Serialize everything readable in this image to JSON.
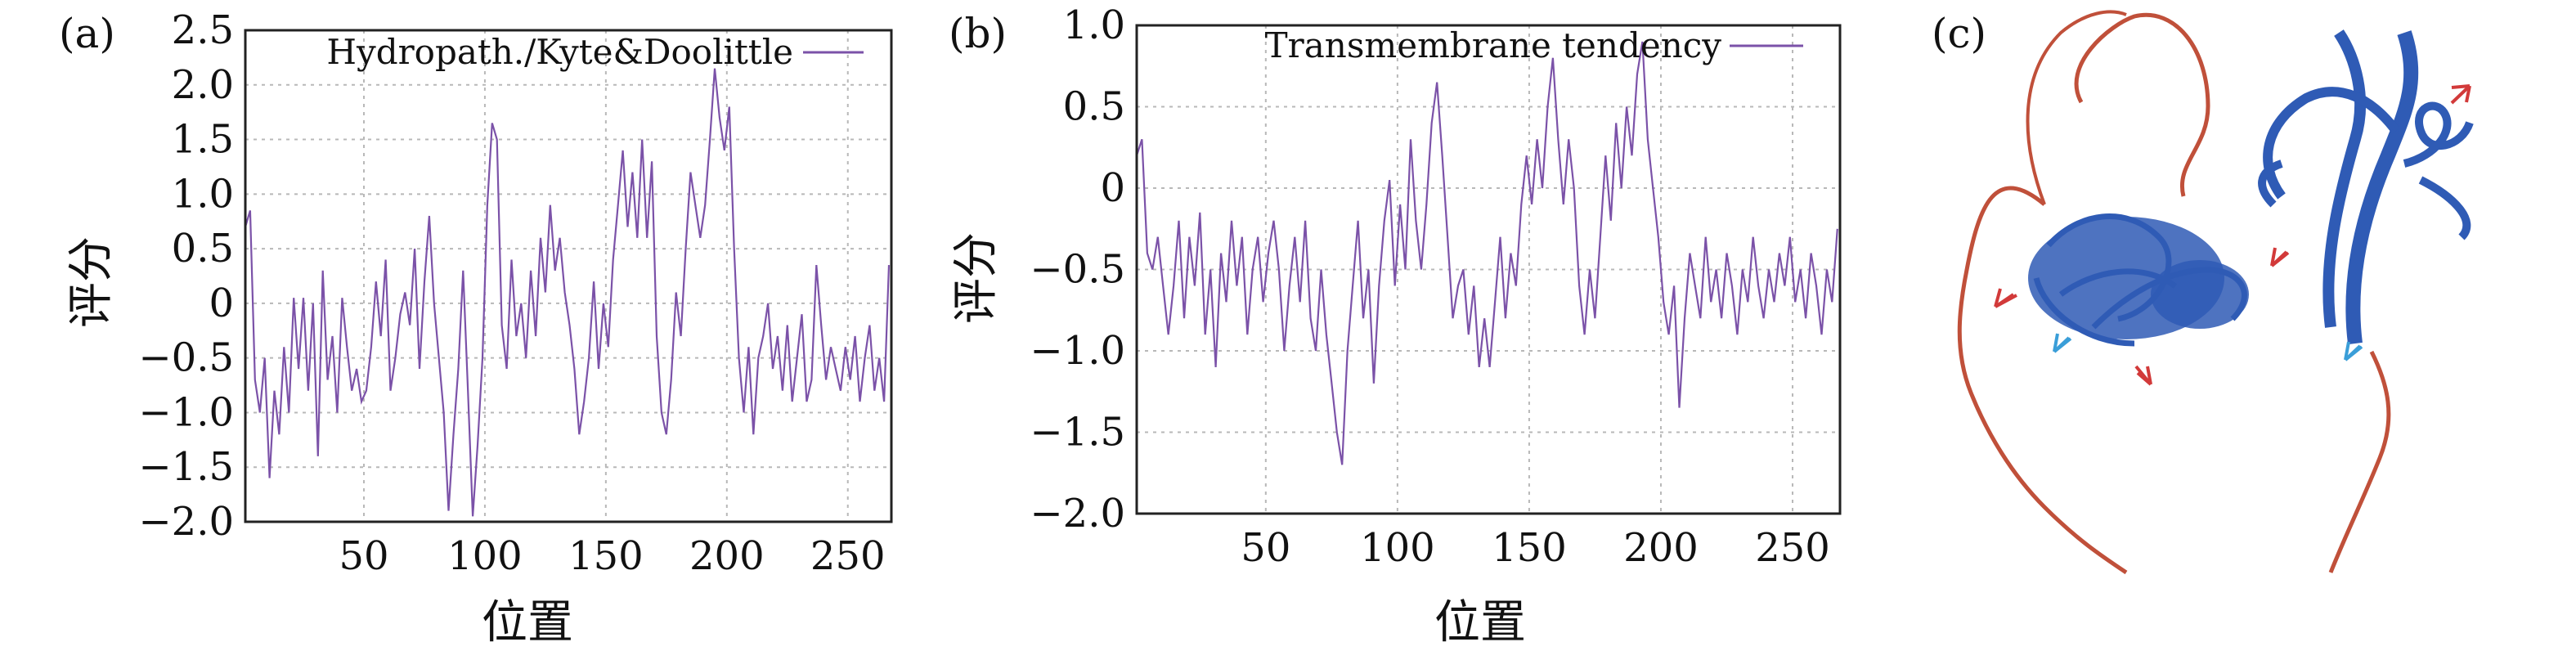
{
  "chart_data": [
    {
      "type": "line",
      "panel_label": "(a)",
      "xlabel": "位置",
      "ylabel": "评分",
      "xlim": [
        1,
        268
      ],
      "ylim": [
        -2.0,
        2.5
      ],
      "xticks": [
        50,
        100,
        150,
        200,
        250
      ],
      "yticks": [
        -2.0,
        -1.5,
        -1.0,
        -0.5,
        0,
        0.5,
        1.0,
        1.5,
        2.0,
        2.5
      ],
      "ytick_labels": [
        "−2.0",
        "−1.5",
        "−1.0",
        "−0.5",
        "0",
        "0.5",
        "1.0",
        "1.5",
        "2.0",
        "2.5"
      ],
      "xtick_labels": [
        "50",
        "100",
        "150",
        "200",
        "250"
      ],
      "grid": true,
      "legend": "top-right",
      "series": [
        {
          "name": "Hydropath./Kyte&Doolittle",
          "color": "#7b52a8",
          "x": [
            1,
            3,
            5,
            7,
            9,
            11,
            13,
            15,
            17,
            19,
            21,
            23,
            25,
            27,
            29,
            31,
            33,
            35,
            37,
            39,
            41,
            43,
            45,
            47,
            49,
            51,
            53,
            55,
            57,
            59,
            61,
            63,
            65,
            67,
            69,
            71,
            73,
            75,
            77,
            79,
            81,
            83,
            85,
            87,
            89,
            91,
            93,
            95,
            97,
            99,
            101,
            103,
            105,
            107,
            109,
            111,
            113,
            115,
            117,
            119,
            121,
            123,
            125,
            127,
            129,
            131,
            133,
            135,
            137,
            139,
            141,
            143,
            145,
            147,
            149,
            151,
            153,
            155,
            157,
            159,
            161,
            163,
            165,
            167,
            169,
            171,
            173,
            175,
            177,
            179,
            181,
            183,
            185,
            187,
            189,
            191,
            193,
            195,
            197,
            199,
            201,
            203,
            205,
            207,
            209,
            211,
            213,
            215,
            217,
            219,
            221,
            223,
            225,
            227,
            229,
            231,
            233,
            235,
            237,
            239,
            241,
            243,
            245,
            247,
            249,
            251,
            253,
            255,
            257,
            259,
            261,
            263,
            265,
            267
          ],
          "values": [
            0.7,
            0.85,
            -0.7,
            -1.0,
            -0.5,
            -1.6,
            -0.8,
            -1.2,
            -0.4,
            -1.0,
            0.05,
            -0.6,
            0.05,
            -0.8,
            0.0,
            -1.4,
            0.3,
            -0.7,
            -0.3,
            -1.0,
            0.05,
            -0.4,
            -0.8,
            -0.6,
            -0.9,
            -0.8,
            -0.4,
            0.2,
            -0.3,
            0.4,
            -0.8,
            -0.5,
            -0.1,
            0.1,
            -0.2,
            0.5,
            -0.6,
            0.2,
            0.8,
            0.0,
            -0.5,
            -1.0,
            -1.9,
            -1.2,
            -0.6,
            0.3,
            -0.8,
            -1.95,
            -1.3,
            -0.5,
            0.9,
            1.65,
            1.5,
            -0.2,
            -0.6,
            0.4,
            -0.3,
            0.0,
            -0.5,
            0.3,
            -0.3,
            0.6,
            0.1,
            0.9,
            0.3,
            0.6,
            0.1,
            -0.2,
            -0.6,
            -1.2,
            -0.9,
            -0.5,
            0.2,
            -0.6,
            0.0,
            -0.4,
            0.4,
            0.9,
            1.4,
            0.7,
            1.2,
            0.6,
            1.5,
            0.6,
            1.3,
            -0.3,
            -1.0,
            -1.2,
            -0.7,
            0.1,
            -0.3,
            0.5,
            1.2,
            0.9,
            0.6,
            0.9,
            1.5,
            2.15,
            1.7,
            1.4,
            1.8,
            0.5,
            -0.5,
            -1.0,
            -0.4,
            -1.2,
            -0.5,
            -0.3,
            0.0,
            -0.6,
            -0.3,
            -0.8,
            -0.2,
            -0.9,
            -0.5,
            -0.1,
            -0.9,
            -0.7,
            0.35,
            -0.2,
            -0.7,
            -0.4,
            -0.6,
            -0.8,
            -0.4,
            -0.7,
            -0.3,
            -0.9,
            -0.5,
            -0.2,
            -0.8,
            -0.5,
            -0.9,
            0.35
          ]
        }
      ]
    },
    {
      "type": "line",
      "panel_label": "(b)",
      "xlabel": "位置",
      "ylabel": "评分",
      "xlim": [
        1,
        268
      ],
      "ylim": [
        -2.0,
        1.0
      ],
      "xticks": [
        50,
        100,
        150,
        200,
        250
      ],
      "yticks": [
        -2.0,
        -1.5,
        -1.0,
        -0.5,
        0,
        0.5,
        1.0
      ],
      "ytick_labels": [
        "−2.0",
        "−1.5",
        "−1.0",
        "−0.5",
        "0",
        "0.5",
        "1.0"
      ],
      "xtick_labels": [
        "50",
        "100",
        "150",
        "200",
        "250"
      ],
      "grid": true,
      "legend": "top-right",
      "series": [
        {
          "name": "Transmembrane tendency",
          "color": "#7b52a8",
          "x": [
            1,
            3,
            5,
            7,
            9,
            11,
            13,
            15,
            17,
            19,
            21,
            23,
            25,
            27,
            29,
            31,
            33,
            35,
            37,
            39,
            41,
            43,
            45,
            47,
            49,
            51,
            53,
            55,
            57,
            59,
            61,
            63,
            65,
            67,
            69,
            71,
            73,
            75,
            77,
            79,
            81,
            83,
            85,
            87,
            89,
            91,
            93,
            95,
            97,
            99,
            101,
            103,
            105,
            107,
            109,
            111,
            113,
            115,
            117,
            119,
            121,
            123,
            125,
            127,
            129,
            131,
            133,
            135,
            137,
            139,
            141,
            143,
            145,
            147,
            149,
            151,
            153,
            155,
            157,
            159,
            161,
            163,
            165,
            167,
            169,
            171,
            173,
            175,
            177,
            179,
            181,
            183,
            185,
            187,
            189,
            191,
            193,
            195,
            197,
            199,
            201,
            203,
            205,
            207,
            209,
            211,
            213,
            215,
            217,
            219,
            221,
            223,
            225,
            227,
            229,
            231,
            233,
            235,
            237,
            239,
            241,
            243,
            245,
            247,
            249,
            251,
            253,
            255,
            257,
            259,
            261,
            263,
            265,
            267
          ],
          "values": [
            0.2,
            0.3,
            -0.4,
            -0.5,
            -0.3,
            -0.6,
            -0.9,
            -0.6,
            -0.2,
            -0.8,
            -0.3,
            -0.6,
            -0.15,
            -0.9,
            -0.5,
            -1.1,
            -0.4,
            -0.7,
            -0.2,
            -0.6,
            -0.3,
            -0.9,
            -0.5,
            -0.3,
            -0.7,
            -0.4,
            -0.2,
            -0.5,
            -1.0,
            -0.6,
            -0.3,
            -0.7,
            -0.2,
            -0.8,
            -1.0,
            -0.5,
            -0.9,
            -1.2,
            -1.5,
            -1.7,
            -1.0,
            -0.6,
            -0.2,
            -0.8,
            -0.5,
            -1.2,
            -0.6,
            -0.2,
            0.05,
            -0.6,
            -0.1,
            -0.5,
            0.3,
            -0.2,
            -0.5,
            -0.1,
            0.4,
            0.65,
            0.2,
            -0.3,
            -0.8,
            -0.6,
            -0.5,
            -0.9,
            -0.6,
            -1.1,
            -0.8,
            -1.1,
            -0.7,
            -0.3,
            -0.8,
            -0.4,
            -0.6,
            -0.1,
            0.2,
            -0.1,
            0.3,
            0.0,
            0.5,
            0.8,
            0.3,
            -0.1,
            0.3,
            0.0,
            -0.6,
            -0.9,
            -0.5,
            -0.8,
            -0.3,
            0.2,
            -0.2,
            0.4,
            0.0,
            0.5,
            0.2,
            0.7,
            0.9,
            0.3,
            0.0,
            -0.3,
            -0.7,
            -0.9,
            -0.6,
            -1.35,
            -0.8,
            -0.4,
            -0.6,
            -0.8,
            -0.3,
            -0.7,
            -0.5,
            -0.8,
            -0.4,
            -0.6,
            -0.9,
            -0.5,
            -0.7,
            -0.3,
            -0.6,
            -0.8,
            -0.5,
            -0.7,
            -0.4,
            -0.6,
            -0.3,
            -0.7,
            -0.5,
            -0.8,
            -0.4,
            -0.6,
            -0.9,
            -0.5,
            -0.7,
            -0.25
          ]
        }
      ]
    }
  ],
  "panel_c": {
    "panel_label": "(c)",
    "ribbon_color": "#2f5bb5",
    "coil_color": "#c0503a",
    "arrow_red": "#d23a3a",
    "arrow_blue": "#3a9ed8"
  }
}
